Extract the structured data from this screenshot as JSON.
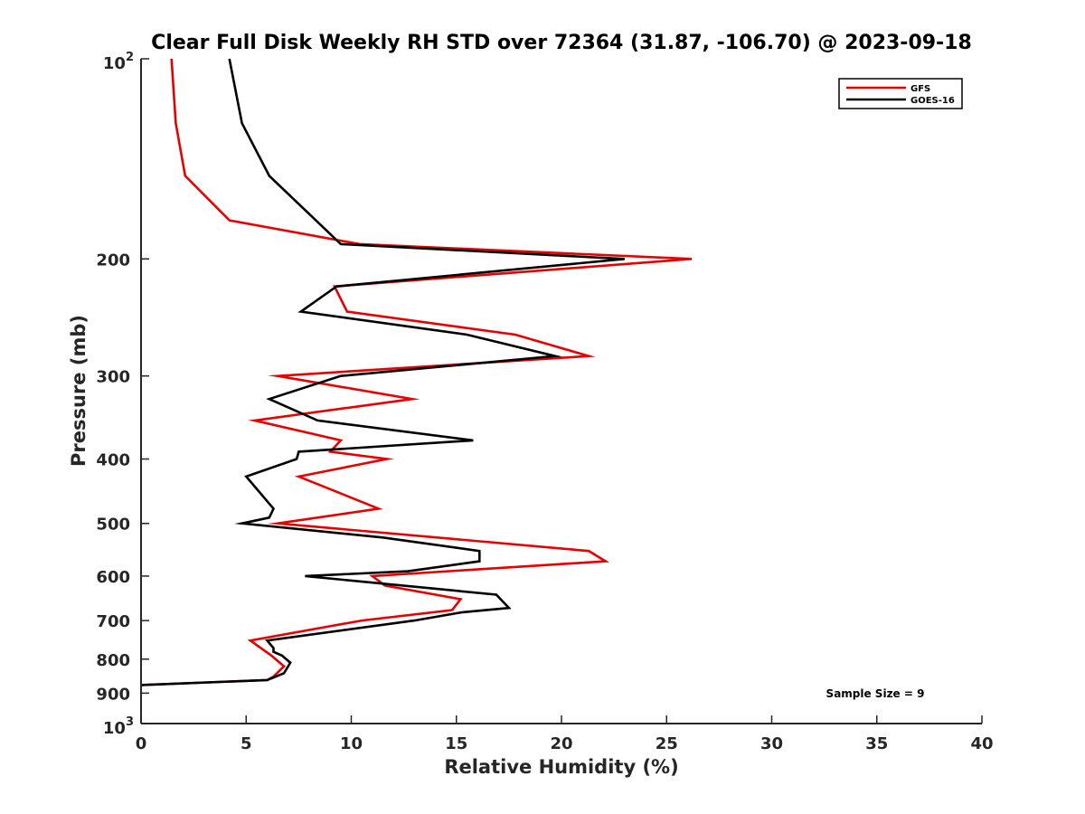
{
  "chart_data": {
    "type": "line",
    "title": "Clear Full Disk Weekly RH STD over 72364 (31.87, -106.70) @ 2023-09-18",
    "xlabel": "Relative Humidity (%)",
    "ylabel": "Pressure (mb)",
    "xlim": [
      0,
      40
    ],
    "ylim": [
      100,
      1000
    ],
    "y_scale": "log",
    "y_reversed": true,
    "grid": false,
    "legend_position": "top-right",
    "x_ticks": [
      0,
      5,
      10,
      15,
      20,
      25,
      30,
      35,
      40
    ],
    "x_tick_labels": [
      "0",
      "5",
      "10",
      "15",
      "20",
      "25",
      "30",
      "35",
      "40"
    ],
    "y_ticks": [
      {
        "value": 100,
        "base": "10",
        "exp": "2",
        "label": ""
      },
      {
        "value": 200,
        "label": "200"
      },
      {
        "value": 300,
        "label": "300"
      },
      {
        "value": 400,
        "label": "400"
      },
      {
        "value": 500,
        "label": "500"
      },
      {
        "value": 600,
        "label": "600"
      },
      {
        "value": 700,
        "label": "700"
      },
      {
        "value": 800,
        "label": "800"
      },
      {
        "value": 900,
        "label": "900"
      },
      {
        "value": 1000,
        "base": "10",
        "exp": "3",
        "label": ""
      }
    ],
    "annotation": "Sample Size = 9",
    "series": [
      {
        "name": "GFS",
        "color": "#e60000",
        "points": [
          [
            1.45,
            100
          ],
          [
            1.65,
            125
          ],
          [
            2.1,
            150
          ],
          [
            4.2,
            175
          ],
          [
            10.4,
            190
          ],
          [
            26.2,
            200
          ],
          [
            9.2,
            220
          ],
          [
            9.8,
            240
          ],
          [
            17.8,
            260
          ],
          [
            21.3,
            280
          ],
          [
            6.5,
            300
          ],
          [
            12.9,
            325
          ],
          [
            5.4,
            350
          ],
          [
            9.5,
            375
          ],
          [
            9.0,
            390
          ],
          [
            11.7,
            400
          ],
          [
            7.5,
            425
          ],
          [
            11.3,
            475
          ],
          [
            6.5,
            500
          ],
          [
            21.3,
            550
          ],
          [
            22.1,
            570
          ],
          [
            11.0,
            600
          ],
          [
            11.6,
            620
          ],
          [
            15.2,
            650
          ],
          [
            14.8,
            675
          ],
          [
            10.5,
            700
          ],
          [
            5.2,
            750
          ],
          [
            6.2,
            790
          ],
          [
            6.8,
            820
          ],
          [
            6.3,
            850
          ],
          [
            6.0,
            860
          ],
          [
            0,
            875
          ]
        ]
      },
      {
        "name": "GOES-16",
        "color": "#000000",
        "points": [
          [
            4.2,
            100
          ],
          [
            4.8,
            125
          ],
          [
            6.1,
            150
          ],
          [
            9.5,
            190
          ],
          [
            23.0,
            200
          ],
          [
            9.3,
            220
          ],
          [
            7.6,
            240
          ],
          [
            15.5,
            260
          ],
          [
            19.7,
            280
          ],
          [
            9.5,
            300
          ],
          [
            6.1,
            325
          ],
          [
            8.4,
            350
          ],
          [
            15.8,
            375
          ],
          [
            7.5,
            390
          ],
          [
            7.4,
            400
          ],
          [
            5.0,
            425
          ],
          [
            6.3,
            475
          ],
          [
            6.1,
            490
          ],
          [
            4.8,
            500
          ],
          [
            11.5,
            525
          ],
          [
            16.1,
            550
          ],
          [
            16.1,
            570
          ],
          [
            12.7,
            590
          ],
          [
            7.8,
            600
          ],
          [
            16.9,
            640
          ],
          [
            17.5,
            670
          ],
          [
            15.3,
            680
          ],
          [
            13.0,
            700
          ],
          [
            6.0,
            750
          ],
          [
            6.3,
            770
          ],
          [
            6.3,
            780
          ],
          [
            6.7,
            790
          ],
          [
            7.1,
            810
          ],
          [
            6.8,
            840
          ],
          [
            6.0,
            860
          ],
          [
            0,
            875
          ]
        ]
      }
    ]
  }
}
